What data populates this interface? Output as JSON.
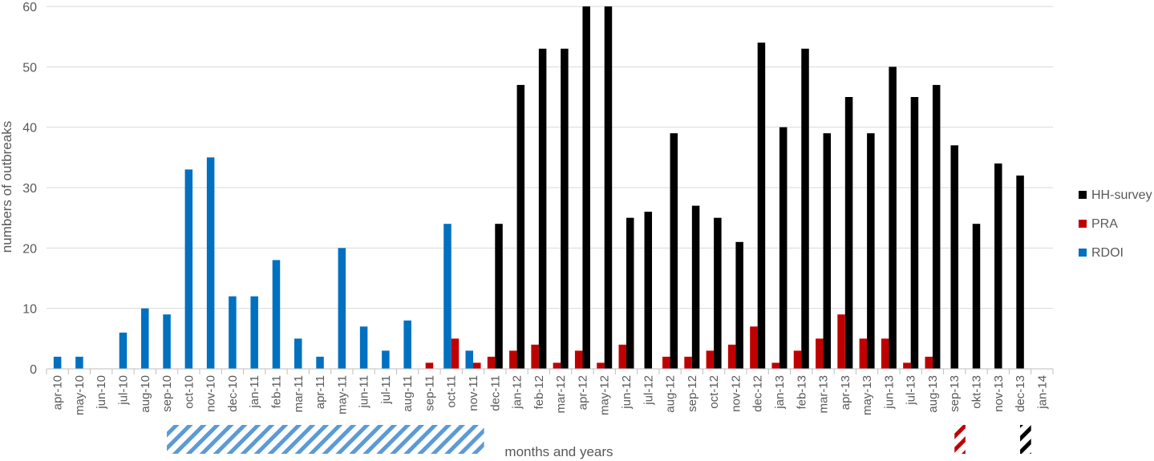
{
  "chart_data": {
    "type": "bar",
    "xlabel": "months and years",
    "ylabel": "numbers of outbreaks",
    "ylim": [
      0,
      60
    ],
    "yticks": [
      0,
      10,
      20,
      30,
      40,
      50,
      60
    ],
    "grid": true,
    "legend_position": "right",
    "categories": [
      "apr-10",
      "may-10",
      "jun-10",
      "jul-10",
      "aug-10",
      "sep-10",
      "oct-10",
      "nov-10",
      "dec-10",
      "jan-11",
      "feb-11",
      "mar-11",
      "apr-11",
      "may-11",
      "jun-11",
      "jul-11",
      "aug-11",
      "sep-11",
      "oct-11",
      "nov-11",
      "dec-11",
      "jan-12",
      "feb-12",
      "mar-12",
      "apr-12",
      "may-12",
      "jun-12",
      "jul-12",
      "aug-12",
      "sep-12",
      "oct-12",
      "nov-12",
      "dec-12",
      "jan-13",
      "feb-13",
      "mar-13",
      "apr-13",
      "may-13",
      "jun-13",
      "jul-13",
      "aug-13",
      "sep-13",
      "okt-13",
      "nov-13",
      "dec-13",
      "jan-14"
    ],
    "series": [
      {
        "name": "RDOI",
        "color": "#0070c0",
        "values": [
          2,
          2,
          0,
          6,
          10,
          9,
          33,
          35,
          12,
          12,
          18,
          5,
          2,
          20,
          7,
          3,
          8,
          0,
          24,
          3,
          0,
          0,
          0,
          0,
          0,
          0,
          0,
          0,
          0,
          0,
          0,
          0,
          0,
          0,
          0,
          0,
          0,
          0,
          0,
          0,
          0,
          0,
          0,
          0,
          0,
          0
        ]
      },
      {
        "name": "PRA",
        "color": "#c00000",
        "values": [
          0,
          0,
          0,
          0,
          0,
          0,
          0,
          0,
          0,
          0,
          0,
          0,
          0,
          0,
          0,
          0,
          0,
          1,
          5,
          1,
          2,
          3,
          4,
          1,
          3,
          1,
          4,
          0,
          2,
          2,
          3,
          4,
          7,
          1,
          3,
          5,
          9,
          5,
          5,
          1,
          2,
          0,
          0,
          0,
          0,
          0
        ]
      },
      {
        "name": "HH-survey",
        "color": "#000000",
        "values": [
          0,
          0,
          0,
          0,
          0,
          0,
          0,
          0,
          0,
          0,
          0,
          0,
          0,
          0,
          0,
          0,
          0,
          0,
          0,
          0,
          24,
          47,
          53,
          53,
          60,
          60,
          25,
          26,
          39,
          27,
          25,
          21,
          54,
          40,
          53,
          39,
          45,
          39,
          50,
          45,
          47,
          37,
          24,
          34,
          32,
          0
        ]
      }
    ],
    "legend_order": [
      "HH-survey",
      "PRA",
      "RDOI"
    ],
    "period_markers": [
      {
        "series": "RDOI",
        "start": "sep-10",
        "end": "nov-11",
        "color": "#5b9bd5"
      },
      {
        "series": "PRA",
        "start": "sep-13",
        "end": "sep-13",
        "color": "#c00000"
      },
      {
        "series": "HH-survey",
        "start": "dec-13",
        "end": "dec-13",
        "color": "#000000"
      }
    ]
  }
}
